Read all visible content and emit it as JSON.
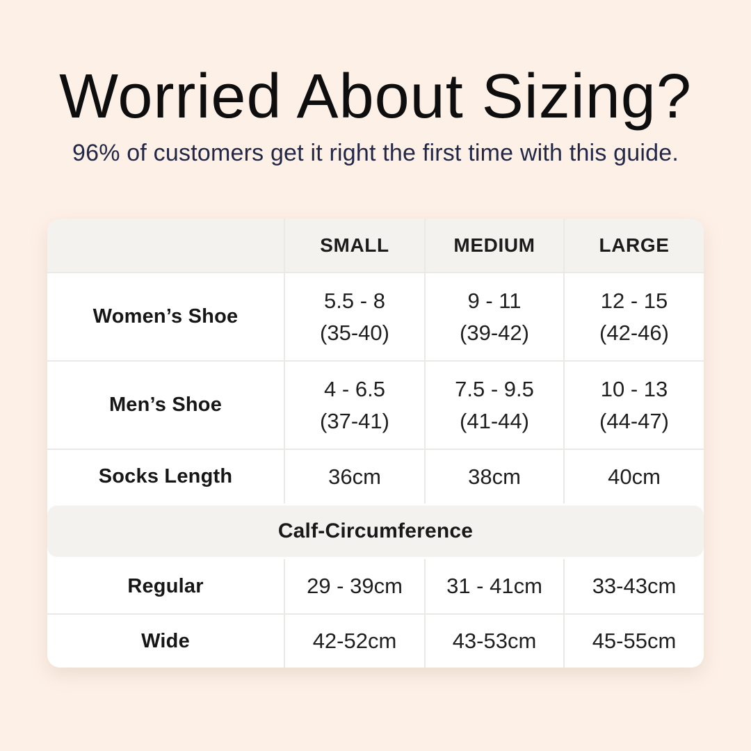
{
  "header": {
    "title": "Worried About Sizing?",
    "subtitle": "96% of customers get it right the first time with this guide."
  },
  "table": {
    "col_headers": {
      "small": "SMALL",
      "medium": "MEDIUM",
      "large": "LARGE"
    },
    "rows": [
      {
        "label": "Women’s Shoe",
        "cells": [
          {
            "main": "5.5 - 8",
            "sub": "(35-40)"
          },
          {
            "main": "9 - 11",
            "sub": "(39-42)"
          },
          {
            "main": "12 - 15",
            "sub": "(42-46)"
          }
        ]
      },
      {
        "label": "Men’s Shoe",
        "cells": [
          {
            "main": "4 - 6.5",
            "sub": "(37-41)"
          },
          {
            "main": "7.5 - 9.5",
            "sub": "(41-44)"
          },
          {
            "main": "10 - 13",
            "sub": "(44-47)"
          }
        ]
      },
      {
        "label": "Socks Length",
        "cells": [
          {
            "main": "36cm"
          },
          {
            "main": "38cm"
          },
          {
            "main": "40cm"
          }
        ]
      }
    ],
    "section_header": "Calf-Circumference",
    "calf_rows": [
      {
        "label": "Regular",
        "cells": [
          {
            "main": "29 - 39cm"
          },
          {
            "main": "31 - 41cm"
          },
          {
            "main": "33-43cm"
          }
        ]
      },
      {
        "label": "Wide",
        "cells": [
          {
            "main": "42-52cm"
          },
          {
            "main": "43-53cm"
          },
          {
            "main": "45-55cm"
          }
        ]
      }
    ]
  },
  "colors": {
    "background": "#fdf0e7",
    "card": "#ffffff",
    "band": "#f3f2ef",
    "border": "#ebe9e6",
    "title_text": "#0e0e0e",
    "subtitle_text": "#232746",
    "table_text": "#1e1e1e"
  }
}
